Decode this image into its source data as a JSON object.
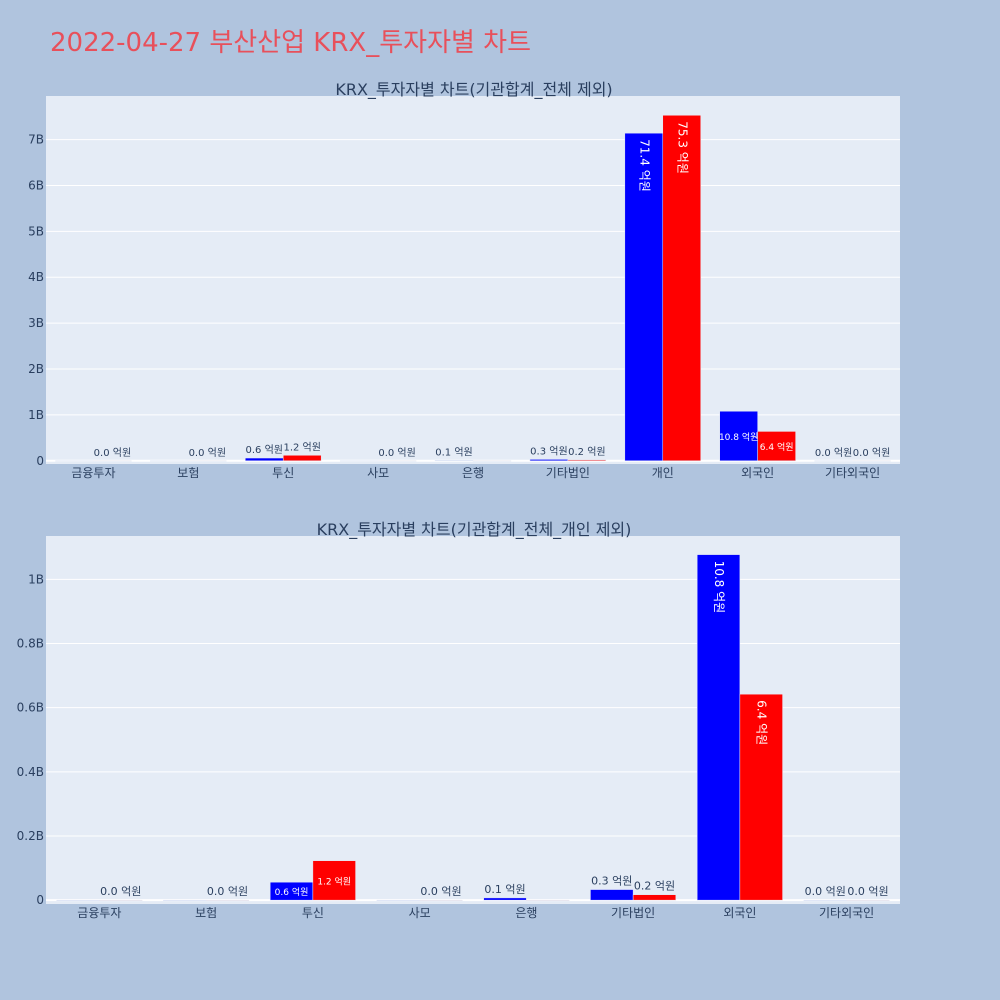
{
  "page_title": "2022-04-27 부산산업 KRX_투자자별 차트",
  "colors": {
    "background": "#b0c4de",
    "plot_bg": "#e5ecf6",
    "title": "#e8505b",
    "series_blue": "#0000ff",
    "series_red": "#ff0000",
    "text": "#2a3f5f"
  },
  "chart_data": [
    {
      "type": "bar",
      "title": "KRX_투자자별 차트(기관합계_전체 제외)",
      "categories": [
        "금융투자",
        "보험",
        "투신",
        "사모",
        "은행",
        "기타법인",
        "개인",
        "외국인",
        "기타외국인"
      ],
      "series": [
        {
          "color": "#0000ff",
          "values": [
            0.0,
            0.0,
            60000000,
            0.0,
            10000000,
            30000000,
            7140000000,
            1080000000,
            0.0
          ],
          "labels": [
            "",
            "",
            "0.6 억원",
            "",
            "0.1 억원",
            "0.3 억원",
            "71.4 억원",
            "10.8 억원",
            "0.0 억원"
          ]
        },
        {
          "color": "#ff0000",
          "values": [
            0.0,
            0.0,
            120000000,
            0.0,
            0.0,
            20000000,
            7530000000,
            640000000,
            0.0
          ],
          "labels": [
            "0.0 억원",
            "0.0 억원",
            "1.2 억원",
            "0.0 억원",
            "",
            "0.2 억원",
            "75.3 억원",
            "6.4 억원",
            "0.0 억원"
          ]
        }
      ],
      "yticks": [
        0,
        1000000000,
        2000000000,
        3000000000,
        4000000000,
        5000000000,
        6000000000,
        7000000000
      ],
      "ytick_labels": [
        "0",
        "1B",
        "2B",
        "3B",
        "4B",
        "5B",
        "6B",
        "7B"
      ],
      "ylim": [
        -70000000,
        7950000000
      ],
      "grid": true,
      "legend": "none"
    },
    {
      "type": "bar",
      "title": "KRX_투자자별 차트(기관합계_전체_개인 제외)",
      "categories": [
        "금융투자",
        "보험",
        "투신",
        "사모",
        "은행",
        "기타법인",
        "외국인",
        "기타외국인"
      ],
      "series": [
        {
          "color": "#0000ff",
          "values": [
            0.0,
            0.0,
            56000000,
            0.0,
            7000000,
            33000000,
            1077000000,
            0.0
          ],
          "labels": [
            "",
            "",
            "0.6 억원",
            "",
            "0.1 억원",
            "0.3 억원",
            "10.8 억원",
            "0.0 억원"
          ]
        },
        {
          "color": "#ff0000",
          "values": [
            0.0,
            0.0,
            123000000,
            0.0,
            0.0,
            17000000,
            642000000,
            0.0
          ],
          "labels": [
            "0.0 억원",
            "0.0 억원",
            "1.2 억원",
            "0.0 억원",
            "",
            "0.2 억원",
            "6.4 억원",
            "0.0 억원"
          ]
        }
      ],
      "yticks": [
        0,
        200000000,
        400000000,
        600000000,
        800000000,
        1000000000
      ],
      "ytick_labels": [
        "0",
        "0.2B",
        "0.4B",
        "0.6B",
        "0.8B",
        "1B"
      ],
      "ylim": [
        -12000000,
        1135000000
      ],
      "grid": true,
      "legend": "none"
    }
  ]
}
